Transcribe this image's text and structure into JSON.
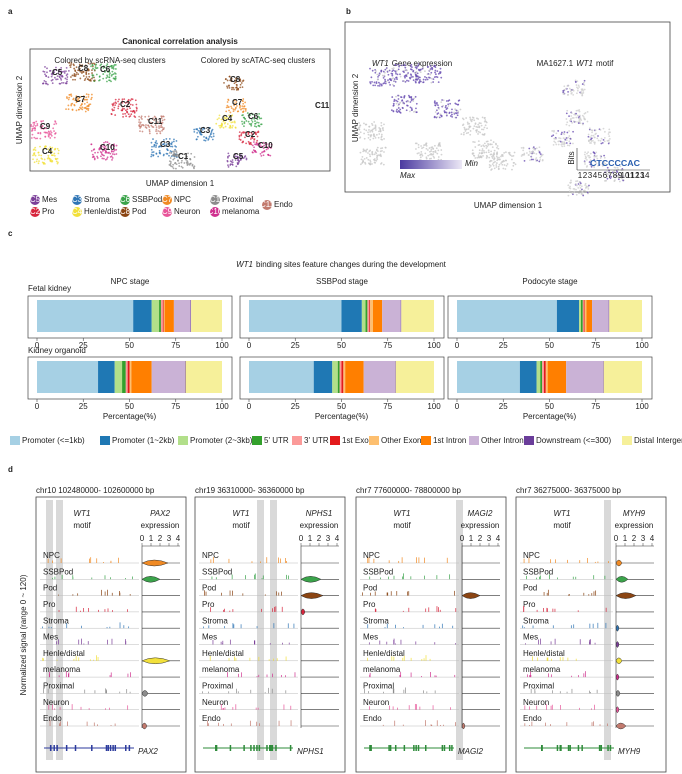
{
  "panels": {
    "a": {
      "label": "a",
      "title": "Canonical correlation analysis",
      "subtitles": [
        "Colored by scRNA-seq clusters",
        "Colored by scATAC-seq clusters"
      ],
      "y_axis": "UMAP dimension 2",
      "x_axis": "UMAP dimension 1",
      "left_clusters": [
        "C5",
        "C8",
        "C6",
        "C7",
        "C2",
        "C9",
        "C11",
        "C4",
        "C10",
        "C3",
        "C1"
      ],
      "right_clusters": [
        "C8",
        "C7",
        "C6",
        "C4",
        "C3",
        "C2",
        "C10",
        "C5",
        "C11"
      ],
      "legend": [
        {
          "badge": "C5",
          "name": "Mes",
          "color": "#7b3f99"
        },
        {
          "badge": "C2",
          "name": "Pro",
          "color": "#d7263d"
        },
        {
          "badge": "C3",
          "name": "Stroma",
          "color": "#2f75b5"
        },
        {
          "badge": "C4",
          "name": "Henle/distal",
          "color": "#f2e03a"
        },
        {
          "badge": "C6",
          "name": "SSBPod",
          "color": "#3aa34a"
        },
        {
          "badge": "C8",
          "name": "Pod",
          "color": "#8b4513"
        },
        {
          "badge": "C7",
          "name": "NPC",
          "color": "#f08a24"
        },
        {
          "badge": "C9",
          "name": "Neuron",
          "color": "#e8559a"
        },
        {
          "badge": "C1",
          "name": "Proximal",
          "color": "#8c8c8c"
        },
        {
          "badge": "C10",
          "name": "melanoma",
          "color": "#d0318f"
        },
        {
          "badge": "C11",
          "name": "Endo",
          "color": "#c27a6e"
        }
      ]
    },
    "b": {
      "label": "b",
      "gene": "WT1",
      "expression_title": "Gene expression",
      "motif_id": "MA1627.1",
      "motif_title": "motif",
      "y_axis": "UMAP dimension 2",
      "x_axis": "UMAP dimension 1",
      "colorbar": [
        "Max",
        "Min"
      ],
      "logo_axis": "Bits",
      "logo": "CTCCCCAC",
      "logo_positions": [
        1,
        2,
        3,
        4,
        5,
        6,
        7,
        8,
        9,
        10,
        11,
        12,
        13,
        14
      ]
    },
    "c": {
      "label": "c",
      "title_gene": "WT1",
      "title_rest": "binding sites feature changes during the development",
      "rows": [
        "Fetal kidney",
        "Kidney organoid"
      ],
      "categories": [
        "Promoter (<=1kb)",
        "Promoter (1~2kb)",
        "Promoter (2~3kb)",
        "5' UTR",
        "3' UTR",
        "1st Exon",
        "Other Exon",
        "1st Intron",
        "Other Intron",
        "Downstream (<=300)",
        "Distal Intergenic"
      ],
      "colors": [
        "#a6d0e4",
        "#1f78b4",
        "#b2df8a",
        "#33a02c",
        "#fb9a99",
        "#e31a1c",
        "#fdbf6f",
        "#ff7f00",
        "#cab2d6",
        "#6a3d9a",
        "#f6f09a"
      ],
      "stages": [
        {
          "title": "NPC stage",
          "rows": [
            [
              52,
              10,
              4,
              1,
              1,
              0.5,
              0.5,
              5,
              9,
              0.3,
              16.7
            ],
            [
              33,
              9,
              4,
              2,
              1,
              1,
              1,
              11,
              18,
              0.3,
              19.7
            ]
          ]
        },
        {
          "title": "SSBPod stage",
          "rows": [
            [
              50,
              11,
              2,
              1,
              1,
              0.5,
              1.5,
              5,
              10,
              0.3,
              17.7
            ],
            [
              35,
              10,
              3,
              1,
              1,
              1,
              1,
              10,
              17,
              0.3,
              20.7
            ]
          ]
        },
        {
          "title": "Podocyte stage",
          "rows": [
            [
              54,
              12,
              1,
              1,
              0.5,
              0.5,
              1,
              3,
              9,
              0.3,
              17.7
            ],
            [
              34,
              9,
              2,
              1,
              1,
              1,
              1,
              10,
              20,
              0.3,
              20.7
            ]
          ]
        }
      ],
      "xlim": [
        0,
        100
      ],
      "xticks": [
        0,
        25,
        50,
        75,
        100
      ],
      "xlabel": "Percentage(%)"
    },
    "d": {
      "label": "d",
      "y_axis": "Normalized signal (range 0 ~ 120)",
      "motif_gene": "WT1",
      "motif": "motif",
      "expression": "expression",
      "violin_ticks": [
        0,
        1,
        2,
        3,
        4
      ],
      "cells": [
        "NPC",
        "SSBPod",
        "Pod",
        "Pro",
        "Stroma",
        "Mes",
        "Henle/distal",
        "melanoma",
        "Proximal",
        "Neuron",
        "Endo"
      ],
      "loci": [
        {
          "coords": "chr10 102480000- 102600000 bp",
          "gene": "PAX2"
        },
        {
          "coords": "chr19 36310000- 36360000 bp",
          "gene": "NPHS1"
        },
        {
          "coords": "chr7 77600000- 78800000 bp",
          "gene": "MAGI2"
        },
        {
          "coords": "chr7 36275000- 36375000 bp",
          "gene": "MYH9"
        }
      ]
    }
  }
}
